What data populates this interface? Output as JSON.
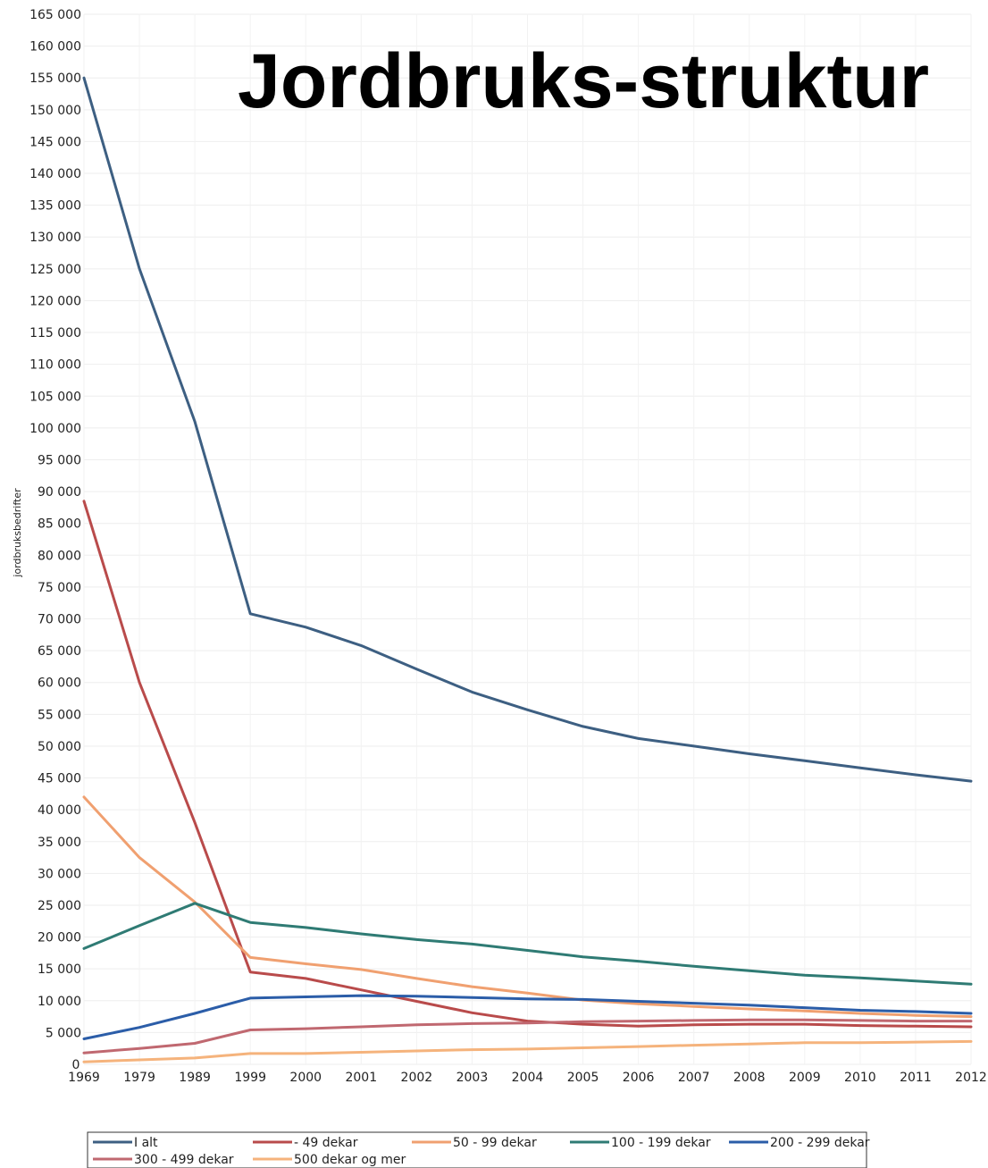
{
  "chart_data": {
    "type": "line",
    "title": "Jordbruks-struktur",
    "ylabel": "jordbruksbedrifter",
    "xlabel": "",
    "categories": [
      "1969",
      "1979",
      "1989",
      "1999",
      "2000",
      "2001",
      "2002",
      "2003",
      "2004",
      "2005",
      "2006",
      "2007",
      "2008",
      "2009",
      "2010",
      "2011",
      "2012"
    ],
    "ylim": [
      0,
      165000
    ],
    "y_ticks": [
      "0",
      "5 000",
      "10 000",
      "15 000",
      "20 000",
      "25 000",
      "30 000",
      "35 000",
      "40 000",
      "45 000",
      "50 000",
      "55 000",
      "60 000",
      "65 000",
      "70 000",
      "75 000",
      "80 000",
      "85 000",
      "90 000",
      "95 000",
      "100 000",
      "105 000",
      "110 000",
      "115 000",
      "120 000",
      "125 000",
      "130 000",
      "135 000",
      "140 000",
      "145 000",
      "150 000",
      "155 000",
      "160 000",
      "165 000"
    ],
    "grid": true,
    "legend_position": "bottom",
    "series": [
      {
        "name": "I alt",
        "color": "#3d5f82",
        "values": [
          155000,
          125000,
          101000,
          70800,
          68700,
          65800,
          62100,
          58500,
          55700,
          53100,
          51200,
          50000,
          48800,
          47700,
          46600,
          45500,
          44500
        ]
      },
      {
        "name": "- 49 dekar",
        "color": "#b94b4b",
        "values": [
          88500,
          60000,
          38000,
          14500,
          13500,
          11700,
          9900,
          8100,
          6800,
          6300,
          6000,
          6200,
          6300,
          6300,
          6100,
          6000,
          5900
        ]
      },
      {
        "name": "50 - 99 dekar",
        "color": "#f0a070",
        "values": [
          42000,
          32500,
          25500,
          16800,
          15800,
          14900,
          13500,
          12200,
          11200,
          10100,
          9500,
          9100,
          8700,
          8400,
          8000,
          7700,
          7500
        ]
      },
      {
        "name": "100 - 199 dekar",
        "color": "#2f7b74",
        "values": [
          18200,
          21800,
          25300,
          22300,
          21500,
          20500,
          19600,
          18900,
          17900,
          16900,
          16200,
          15400,
          14700,
          14000,
          13600,
          13100,
          12600
        ]
      },
      {
        "name": "200 - 299 dekar",
        "color": "#2b5da8",
        "values": [
          4000,
          5800,
          8000,
          10400,
          10600,
          10800,
          10700,
          10500,
          10300,
          10200,
          9900,
          9600,
          9300,
          8900,
          8500,
          8300,
          8000
        ]
      },
      {
        "name": "300 - 499 dekar",
        "color": "#c06870",
        "values": [
          1800,
          2500,
          3300,
          5400,
          5600,
          5900,
          6200,
          6400,
          6500,
          6700,
          6800,
          6900,
          7000,
          7000,
          6900,
          6800,
          6800
        ]
      },
      {
        "name": "500 dekar og mer",
        "color": "#f5b37c",
        "values": [
          400,
          700,
          1000,
          1700,
          1700,
          1900,
          2100,
          2300,
          2400,
          2600,
          2800,
          3000,
          3200,
          3400,
          3400,
          3500,
          3600
        ]
      }
    ]
  }
}
